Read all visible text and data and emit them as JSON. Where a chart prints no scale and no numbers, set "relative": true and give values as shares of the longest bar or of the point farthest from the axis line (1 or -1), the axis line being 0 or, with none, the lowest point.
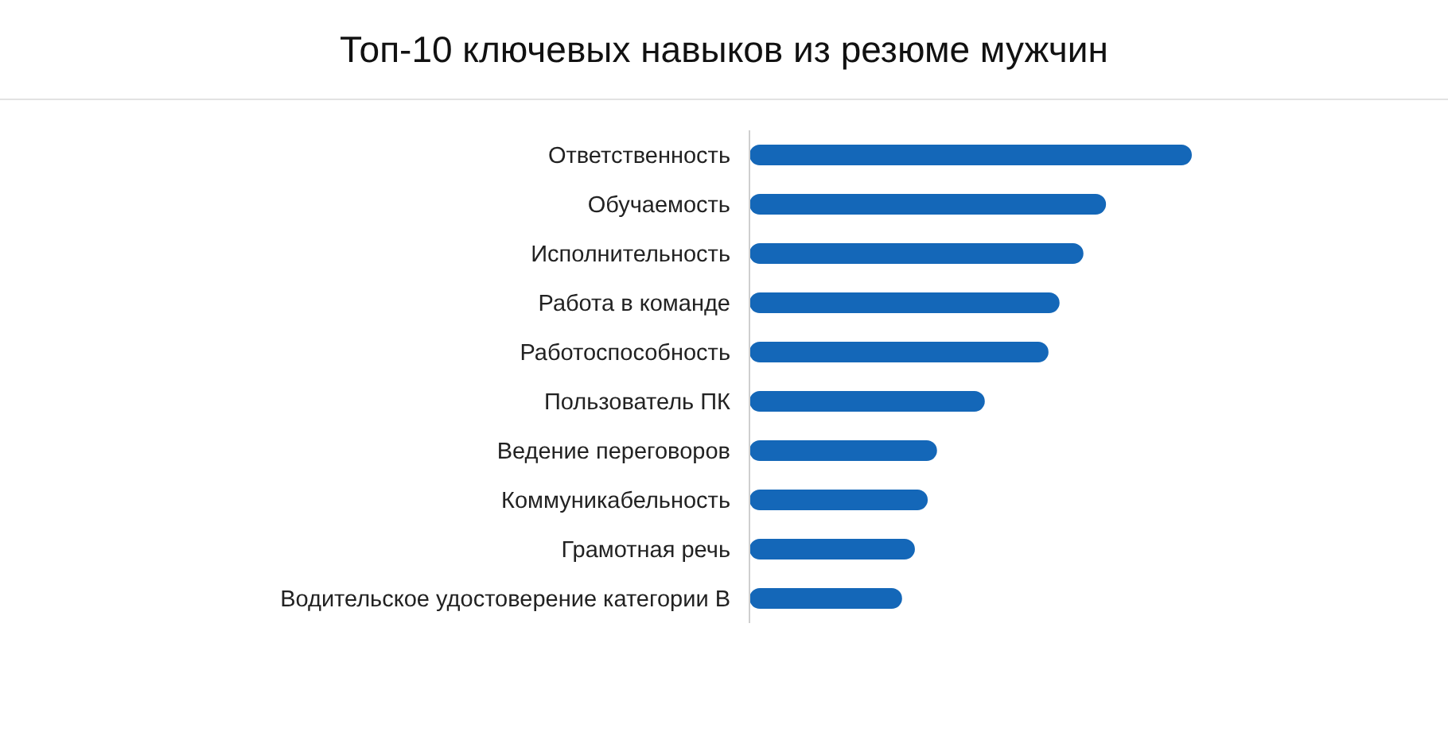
{
  "chart_data": {
    "type": "bar",
    "orientation": "horizontal",
    "relative": true,
    "title": "Топ-10 ключевых навыков из резюме мужчин",
    "categories": [
      "Ответственность",
      "Обучаемость",
      "Исполнительность",
      "Работа в команде",
      "Работоспособность",
      "Пользователь ПК",
      "Ведение переговоров",
      "Коммуникабельность",
      "Грамотная речь",
      "Водительское удостоверение категории B"
    ],
    "values": [
      1,
      0.806,
      0.755,
      0.701,
      0.676,
      0.532,
      0.424,
      0.403,
      0.374,
      0.345
    ],
    "color": "#1467b8",
    "grid": false,
    "legend": false
  }
}
